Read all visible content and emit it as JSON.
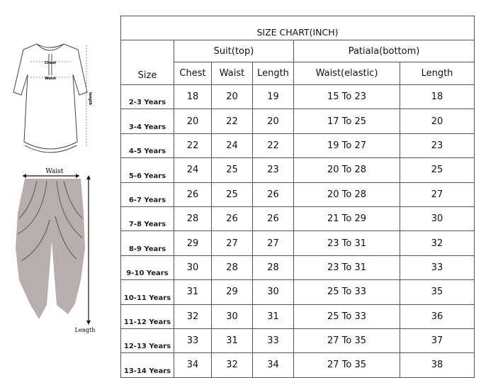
{
  "title": "SIZE CHART(INCH)",
  "groups": {
    "top": "Suit(top)",
    "bottom": "Patiala(bottom)"
  },
  "headers": {
    "size": "Size",
    "chest": "Chest",
    "waist": "Waist",
    "length": "Length",
    "waist_elastic": "Waist(elastic)",
    "bottom_length": "Length"
  },
  "rows": [
    {
      "size": "2-3 Years",
      "chest": "18",
      "waist": "20",
      "length": "19",
      "waist_elastic": "15 To 23",
      "bottom_length": "18"
    },
    {
      "size": "3-4 Years",
      "chest": "20",
      "waist": "22",
      "length": "20",
      "waist_elastic": "17 To 25",
      "bottom_length": "20"
    },
    {
      "size": "4-5 Years",
      "chest": "22",
      "waist": "24",
      "length": "22",
      "waist_elastic": "19 To 27",
      "bottom_length": "23"
    },
    {
      "size": "5-6 Years",
      "chest": "24",
      "waist": "25",
      "length": "23",
      "waist_elastic": "20 To 28",
      "bottom_length": "25"
    },
    {
      "size": "6-7 Years",
      "chest": "26",
      "waist": "25",
      "length": "26",
      "waist_elastic": "20 To 28",
      "bottom_length": "27"
    },
    {
      "size": "7-8 Years",
      "chest": "28",
      "waist": "26",
      "length": "26",
      "waist_elastic": "21 To 29",
      "bottom_length": "30"
    },
    {
      "size": "8-9 Years",
      "chest": "29",
      "waist": "27",
      "length": "27",
      "waist_elastic": "23 To 31",
      "bottom_length": "32"
    },
    {
      "size": "9-10 Years",
      "chest": "30",
      "waist": "28",
      "length": "28",
      "waist_elastic": "23 To 31",
      "bottom_length": "33"
    },
    {
      "size": "10-11 Years",
      "chest": "31",
      "waist": "29",
      "length": "30",
      "waist_elastic": "25 To 33",
      "bottom_length": "35"
    },
    {
      "size": "11-12 Years",
      "chest": "32",
      "waist": "30",
      "length": "31",
      "waist_elastic": "25 To 33",
      "bottom_length": "36"
    },
    {
      "size": "12-13 Years",
      "chest": "33",
      "waist": "31",
      "length": "33",
      "waist_elastic": "27 To 35",
      "bottom_length": "37"
    },
    {
      "size": "13-14 Years",
      "chest": "34",
      "waist": "32",
      "length": "34",
      "waist_elastic": "27 To 35",
      "bottom_length": "38"
    }
  ],
  "figures": {
    "top_labels": {
      "chest": "Chest",
      "waist": "Waist",
      "length": "length"
    },
    "bottom_labels": {
      "waist": "Waist",
      "length": "Length"
    },
    "colors": {
      "pants_fill": "#b8aeae",
      "measure_line": "#c98080"
    }
  }
}
